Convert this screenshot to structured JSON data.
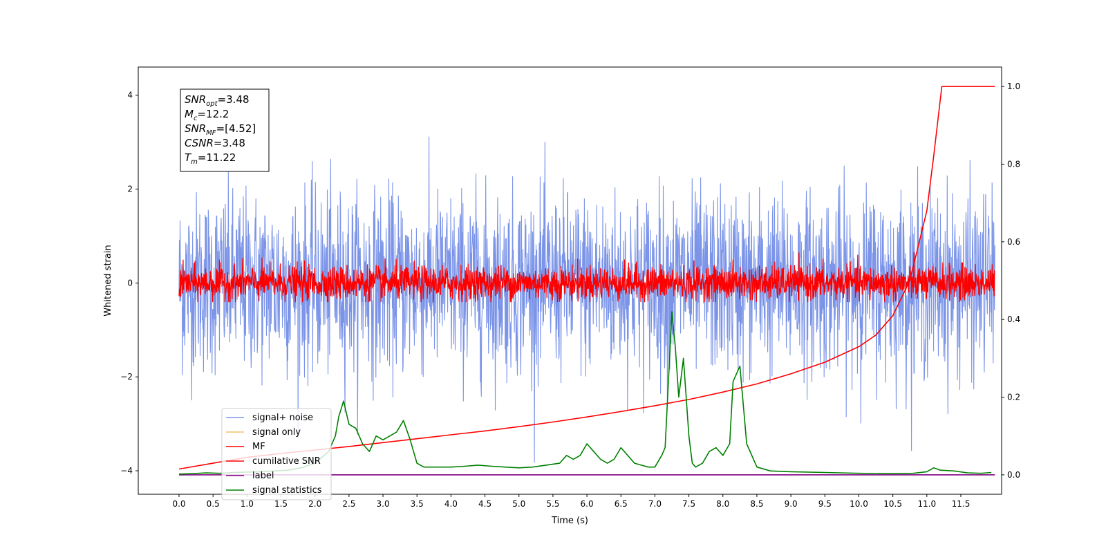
{
  "chart_data": {
    "type": "line",
    "title": "",
    "xlabel": "Time (s)",
    "ylabel": "Whitened strain",
    "xlim": [
      -0.6,
      12.1
    ],
    "ylim": [
      -4.5,
      4.6
    ],
    "y2lim": [
      -0.05,
      1.05
    ],
    "x_ticks": [
      0.0,
      0.5,
      1.0,
      1.5,
      2.0,
      2.5,
      3.0,
      3.5,
      4.0,
      4.5,
      5.0,
      5.5,
      6.0,
      6.5,
      7.0,
      7.5,
      8.0,
      8.5,
      9.0,
      9.5,
      10.0,
      10.5,
      11.0,
      11.5
    ],
    "x_tick_labels": [
      "0.0",
      "0.5",
      "1.0",
      "1.5",
      "2.0",
      "2.5",
      "3.0",
      "3.5",
      "4.0",
      "4.5",
      "5.0",
      "5.5",
      "6.0",
      "6.5",
      "7.0",
      "7.5",
      "8.0",
      "8.5",
      "9.0",
      "9.5",
      "10.0",
      "10.5",
      "11.0",
      "11.5"
    ],
    "y_ticks": [
      -4,
      -2,
      0,
      2,
      4
    ],
    "y_tick_labels": [
      "−4",
      "−2",
      "0",
      "2",
      "4"
    ],
    "y2_ticks": [
      0.0,
      0.2,
      0.4,
      0.6,
      0.8,
      1.0
    ],
    "y2_tick_labels": [
      "0.0",
      "0.2",
      "0.4",
      "0.6",
      "0.8",
      "1.0"
    ],
    "grid": false,
    "legend_position": "lower-left",
    "annotation": {
      "lines": [
        {
          "sym": "SNR",
          "sub": "opt",
          "val": "=3.48"
        },
        {
          "sym": "M",
          "sub": "c",
          "val": "=12.2"
        },
        {
          "sym": "SNR",
          "sub": "MF",
          "val": "=[4.52]"
        },
        {
          "sym": "CSNR",
          "sub": "",
          "val": "=3.48"
        },
        {
          "sym": "T",
          "sub": "m",
          "val": "=11.22"
        }
      ]
    },
    "series": [
      {
        "name": "signal+ noise",
        "color": "#7b94e8",
        "axis": "left",
        "kind": "noise",
        "x_range": [
          0,
          12.0
        ],
        "envelope_std": 0.95,
        "max_value": 4.1,
        "min_value": -4.1
      },
      {
        "name": "signal only",
        "color": "#f5c16c",
        "axis": "left",
        "kind": "flat",
        "x_range": [
          0,
          12.0
        ],
        "note_value": 0.0
      },
      {
        "name": "MF",
        "color": "#ff0000",
        "axis": "left",
        "kind": "noise",
        "x_range": [
          0,
          12.0
        ],
        "envelope_std": 0.18,
        "max_value": 0.95,
        "min_value": -0.4
      },
      {
        "name": "cumilative SNR",
        "color": "#ff0000",
        "axis": "right",
        "x": [
          0.0,
          0.5,
          1.0,
          1.5,
          2.0,
          2.5,
          3.0,
          3.5,
          4.0,
          4.5,
          5.0,
          5.5,
          6.0,
          6.5,
          7.0,
          7.5,
          8.0,
          8.5,
          9.0,
          9.5,
          10.0,
          10.25,
          10.5,
          10.75,
          11.0,
          11.1,
          11.22,
          12.0
        ],
        "values": [
          0.015,
          0.03,
          0.045,
          0.055,
          0.064,
          0.073,
          0.083,
          0.093,
          0.103,
          0.113,
          0.124,
          0.136,
          0.149,
          0.163,
          0.178,
          0.194,
          0.213,
          0.234,
          0.26,
          0.29,
          0.33,
          0.36,
          0.41,
          0.5,
          0.68,
          0.82,
          1.0,
          1.0
        ]
      },
      {
        "name": "label",
        "color": "#800080",
        "axis": "right",
        "x": [
          0.0,
          12.0
        ],
        "values": [
          0.0,
          0.0
        ]
      },
      {
        "name": "signal statistics",
        "color": "#008000",
        "axis": "right",
        "x": [
          0.0,
          0.2,
          0.4,
          0.6,
          0.8,
          1.0,
          1.2,
          1.4,
          1.6,
          1.8,
          2.0,
          2.2,
          2.3,
          2.35,
          2.42,
          2.5,
          2.6,
          2.7,
          2.8,
          2.9,
          3.0,
          3.1,
          3.2,
          3.3,
          3.4,
          3.5,
          3.6,
          3.8,
          4.0,
          4.2,
          4.4,
          4.6,
          4.8,
          5.0,
          5.2,
          5.4,
          5.6,
          5.7,
          5.8,
          5.9,
          6.0,
          6.1,
          6.2,
          6.3,
          6.4,
          6.5,
          6.6,
          6.7,
          6.8,
          6.9,
          7.0,
          7.1,
          7.15,
          7.25,
          7.3,
          7.35,
          7.42,
          7.5,
          7.55,
          7.6,
          7.7,
          7.8,
          7.9,
          8.0,
          8.1,
          8.15,
          8.25,
          8.35,
          8.5,
          8.7,
          9.0,
          9.5,
          10.0,
          10.5,
          10.8,
          11.0,
          11.1,
          11.2,
          11.4,
          11.6,
          11.8,
          11.95
        ],
        "values": [
          0.002,
          0.003,
          0.005,
          0.004,
          0.006,
          0.007,
          0.008,
          0.01,
          0.012,
          0.018,
          0.03,
          0.06,
          0.1,
          0.15,
          0.19,
          0.13,
          0.12,
          0.08,
          0.06,
          0.1,
          0.09,
          0.1,
          0.11,
          0.14,
          0.09,
          0.03,
          0.02,
          0.02,
          0.02,
          0.022,
          0.025,
          0.022,
          0.02,
          0.018,
          0.02,
          0.025,
          0.03,
          0.05,
          0.04,
          0.05,
          0.08,
          0.06,
          0.04,
          0.03,
          0.04,
          0.07,
          0.05,
          0.03,
          0.025,
          0.02,
          0.02,
          0.05,
          0.07,
          0.42,
          0.33,
          0.2,
          0.3,
          0.1,
          0.03,
          0.02,
          0.03,
          0.06,
          0.07,
          0.05,
          0.08,
          0.24,
          0.28,
          0.08,
          0.02,
          0.01,
          0.008,
          0.006,
          0.004,
          0.003,
          0.004,
          0.008,
          0.018,
          0.012,
          0.01,
          0.005,
          0.004,
          0.006
        ]
      }
    ]
  }
}
